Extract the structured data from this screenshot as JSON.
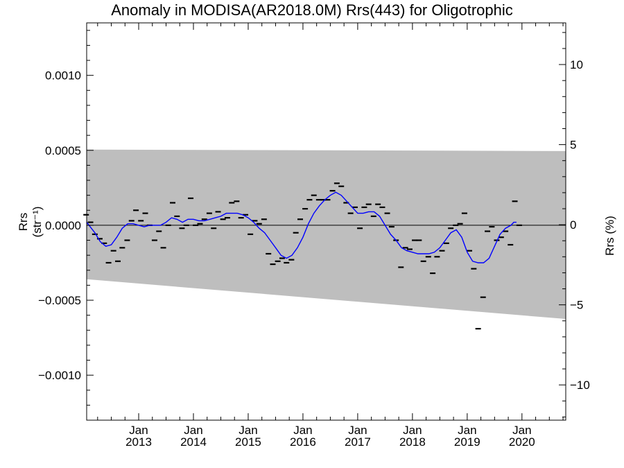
{
  "chart_data": {
    "type": "line",
    "title": "Anomaly in MODISA(AR2018.0M) Rrs(443) for Oligotrophic",
    "ylabel": "Rrs (str⁻¹)",
    "ylabel_right": "Rrs (%)",
    "xlim": [
      2012.05,
      2020.8
    ],
    "ylim": [
      -0.0013,
      0.00135
    ],
    "ylim_right": [
      -12.2,
      12.6
    ],
    "x_ticks": [
      {
        "x": 2013.0,
        "month": "Jan",
        "year": "2013"
      },
      {
        "x": 2014.0,
        "month": "Jan",
        "year": "2014"
      },
      {
        "x": 2015.0,
        "month": "Jan",
        "year": "2015"
      },
      {
        "x": 2016.0,
        "month": "Jan",
        "year": "2016"
      },
      {
        "x": 2017.0,
        "month": "Jan",
        "year": "2017"
      },
      {
        "x": 2018.0,
        "month": "Jan",
        "year": "2018"
      },
      {
        "x": 2019.0,
        "month": "Jan",
        "year": "2019"
      },
      {
        "x": 2020.0,
        "month": "Jan",
        "year": "2020"
      }
    ],
    "y_ticks_left": [
      {
        "v": 0.001,
        "label": "0.0010"
      },
      {
        "v": 0.0005,
        "label": "0.0005"
      },
      {
        "v": 0.0,
        "label": "0.0000"
      },
      {
        "v": -0.0005,
        "label": "−0.0005"
      },
      {
        "v": -0.001,
        "label": "−0.0010"
      }
    ],
    "y_ticks_right": [
      {
        "v": 10,
        "label": "10"
      },
      {
        "v": 5,
        "label": "5"
      },
      {
        "v": 0,
        "label": "0"
      },
      {
        "v": -5,
        "label": "−5"
      },
      {
        "v": -10,
        "label": "−10"
      }
    ],
    "band": {
      "upper": [
        [
          2012.05,
          0.000505
        ],
        [
          2020.8,
          0.000495
        ]
      ],
      "lower": [
        [
          2012.05,
          -0.00036
        ],
        [
          2020.8,
          -0.000625
        ]
      ],
      "color": "#bebebe"
    },
    "smooth_color": "#0000ff",
    "smooth_line": [
      [
        2012.05,
        2e-05
      ],
      [
        2012.2,
        -5e-05
      ],
      [
        2012.3,
        -0.00011
      ],
      [
        2012.4,
        -0.00014
      ],
      [
        2012.5,
        -0.00013
      ],
      [
        2012.6,
        -8e-05
      ],
      [
        2012.7,
        -2e-05
      ],
      [
        2012.8,
        1e-05
      ],
      [
        2012.9,
        1e-05
      ],
      [
        2013.0,
        0.0
      ],
      [
        2013.1,
        -1e-05
      ],
      [
        2013.2,
        0.0
      ],
      [
        2013.3,
        0.0
      ],
      [
        2013.4,
        0.0
      ],
      [
        2013.5,
        2e-05
      ],
      [
        2013.6,
        5e-05
      ],
      [
        2013.7,
        4e-05
      ],
      [
        2013.8,
        2e-05
      ],
      [
        2013.9,
        4e-05
      ],
      [
        2014.0,
        4e-05
      ],
      [
        2014.1,
        3e-05
      ],
      [
        2014.2,
        3e-05
      ],
      [
        2014.3,
        4e-05
      ],
      [
        2014.4,
        5e-05
      ],
      [
        2014.5,
        6e-05
      ],
      [
        2014.6,
        8e-05
      ],
      [
        2014.7,
        8e-05
      ],
      [
        2014.8,
        8e-05
      ],
      [
        2014.9,
        7e-05
      ],
      [
        2015.0,
        5e-05
      ],
      [
        2015.1,
        2e-05
      ],
      [
        2015.2,
        -2e-05
      ],
      [
        2015.3,
        -5e-05
      ],
      [
        2015.4,
        -0.0001
      ],
      [
        2015.5,
        -0.00015
      ],
      [
        2015.6,
        -0.0002
      ],
      [
        2015.7,
        -0.00022
      ],
      [
        2015.8,
        -0.0002
      ],
      [
        2015.9,
        -0.00015
      ],
      [
        2016.0,
        -8e-05
      ],
      [
        2016.1,
        1e-05
      ],
      [
        2016.2,
        8e-05
      ],
      [
        2016.3,
        0.00013
      ],
      [
        2016.4,
        0.00017
      ],
      [
        2016.5,
        0.0002
      ],
      [
        2016.6,
        0.00022
      ],
      [
        2016.7,
        0.0002
      ],
      [
        2016.8,
        0.00016
      ],
      [
        2016.9,
        0.00012
      ],
      [
        2017.0,
        8e-05
      ],
      [
        2017.1,
        8e-05
      ],
      [
        2017.2,
        9e-05
      ],
      [
        2017.3,
        9e-05
      ],
      [
        2017.4,
        6e-05
      ],
      [
        2017.5,
        0.0
      ],
      [
        2017.6,
        -6e-05
      ],
      [
        2017.7,
        -0.0001
      ],
      [
        2017.8,
        -0.00015
      ],
      [
        2017.9,
        -0.00017
      ],
      [
        2018.0,
        -0.00018
      ],
      [
        2018.1,
        -0.00019
      ],
      [
        2018.2,
        -0.00019
      ],
      [
        2018.3,
        -0.00019
      ],
      [
        2018.4,
        -0.00018
      ],
      [
        2018.5,
        -0.00015
      ],
      [
        2018.6,
        -0.0001
      ],
      [
        2018.7,
        -5e-05
      ],
      [
        2018.8,
        -3e-05
      ],
      [
        2018.9,
        -8e-05
      ],
      [
        2019.0,
        -0.00018
      ],
      [
        2019.1,
        -0.00024
      ],
      [
        2019.2,
        -0.00025
      ],
      [
        2019.3,
        -0.00025
      ],
      [
        2019.4,
        -0.00022
      ],
      [
        2019.5,
        -0.00014
      ],
      [
        2019.6,
        -6e-05
      ],
      [
        2019.7,
        -2e-05
      ],
      [
        2019.8,
        0.0
      ],
      [
        2019.85,
        2e-05
      ],
      [
        2019.9,
        2e-05
      ]
    ],
    "monthly_points": [
      [
        2012.04,
        7e-05
      ],
      [
        2012.12,
        2e-05
      ],
      [
        2012.2,
        -6e-05
      ],
      [
        2012.29,
        -9e-05
      ],
      [
        2012.37,
        -0.00012
      ],
      [
        2012.45,
        -0.00025
      ],
      [
        2012.54,
        -0.00017
      ],
      [
        2012.62,
        -0.00024
      ],
      [
        2012.7,
        -0.00015
      ],
      [
        2012.79,
        -0.0001
      ],
      [
        2012.87,
        3e-05
      ],
      [
        2012.95,
        0.0001
      ],
      [
        2013.04,
        3e-05
      ],
      [
        2013.12,
        8e-05
      ],
      [
        2013.2,
        0.0
      ],
      [
        2013.29,
        -0.0001
      ],
      [
        2013.37,
        -4e-05
      ],
      [
        2013.45,
        -0.00015
      ],
      [
        2013.54,
        0.0
      ],
      [
        2013.62,
        0.00015
      ],
      [
        2013.7,
        6e-05
      ],
      [
        2013.79,
        -2e-05
      ],
      [
        2013.87,
        0.0
      ],
      [
        2013.95,
        0.00018
      ],
      [
        2014.04,
        0.0
      ],
      [
        2014.12,
        1e-05
      ],
      [
        2014.2,
        4e-05
      ],
      [
        2014.29,
        8e-05
      ],
      [
        2014.37,
        -2e-05
      ],
      [
        2014.45,
        9e-05
      ],
      [
        2014.54,
        4e-05
      ],
      [
        2014.62,
        5e-05
      ],
      [
        2014.7,
        0.00015
      ],
      [
        2014.79,
        0.00016
      ],
      [
        2014.87,
        5e-05
      ],
      [
        2014.95,
        7e-05
      ],
      [
        2015.04,
        -6e-05
      ],
      [
        2015.12,
        3e-05
      ],
      [
        2015.2,
        1e-05
      ],
      [
        2015.29,
        4e-05
      ],
      [
        2015.37,
        -0.00019
      ],
      [
        2015.45,
        -0.00026
      ],
      [
        2015.54,
        -0.00024
      ],
      [
        2015.62,
        -0.00022
      ],
      [
        2015.7,
        -0.00025
      ],
      [
        2015.79,
        -0.00023
      ],
      [
        2015.87,
        -5e-05
      ],
      [
        2015.95,
        4e-05
      ],
      [
        2016.04,
        0.00011
      ],
      [
        2016.12,
        0.00017
      ],
      [
        2016.2,
        0.0002
      ],
      [
        2016.29,
        0.00017
      ],
      [
        2016.37,
        0.00017
      ],
      [
        2016.45,
        0.00017
      ],
      [
        2016.54,
        0.00023
      ],
      [
        2016.62,
        0.00028
      ],
      [
        2016.7,
        0.00026
      ],
      [
        2016.79,
        0.00015
      ],
      [
        2016.87,
        8e-05
      ],
      [
        2016.95,
        0.00012
      ],
      [
        2017.04,
        -2e-05
      ],
      [
        2017.12,
        0.00012
      ],
      [
        2017.2,
        0.00014
      ],
      [
        2017.29,
        6e-05
      ],
      [
        2017.37,
        0.00014
      ],
      [
        2017.45,
        0.00012
      ],
      [
        2017.54,
        8e-05
      ],
      [
        2017.62,
        -1e-05
      ],
      [
        2017.7,
        -0.0001
      ],
      [
        2017.79,
        -0.00028
      ],
      [
        2017.87,
        -0.00015
      ],
      [
        2017.95,
        -0.00016
      ],
      [
        2018.04,
        -0.0001
      ],
      [
        2018.12,
        -0.0001
      ],
      [
        2018.2,
        -0.00024
      ],
      [
        2018.29,
        -0.00021
      ],
      [
        2018.37,
        -0.00032
      ],
      [
        2018.45,
        -0.00021
      ],
      [
        2018.54,
        -0.00017
      ],
      [
        2018.62,
        -0.00012
      ],
      [
        2018.7,
        -2e-05
      ],
      [
        2018.79,
        0.0
      ],
      [
        2018.87,
        1e-05
      ],
      [
        2018.95,
        8e-05
      ],
      [
        2019.04,
        -0.00017
      ],
      [
        2019.12,
        -0.00029
      ],
      [
        2019.2,
        -0.00069
      ],
      [
        2019.29,
        -0.00048
      ],
      [
        2019.37,
        -4e-05
      ],
      [
        2019.45,
        -1e-05
      ],
      [
        2019.54,
        -0.0001
      ],
      [
        2019.62,
        -8e-05
      ],
      [
        2019.7,
        -4e-05
      ],
      [
        2019.79,
        -0.00013
      ],
      [
        2019.87,
        0.00016
      ],
      [
        2019.95,
        0.0
      ]
    ]
  }
}
